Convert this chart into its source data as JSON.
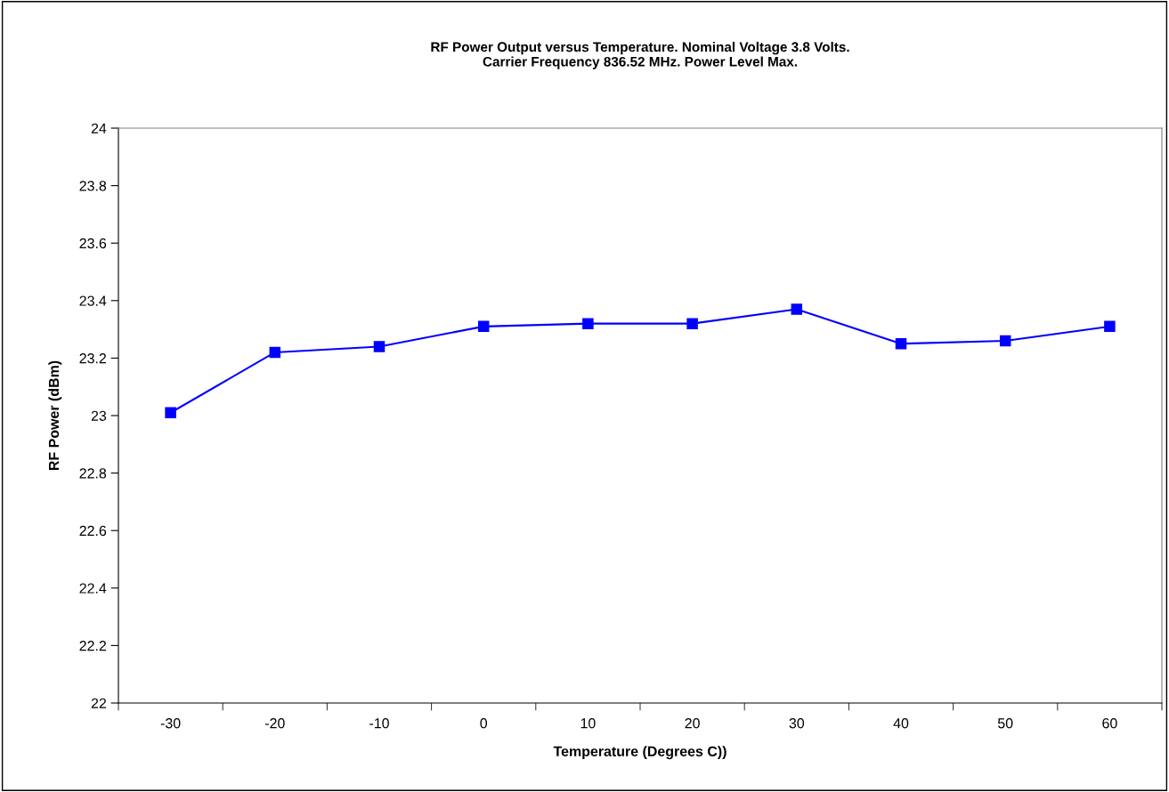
{
  "chart_data": {
    "type": "line",
    "title": "RF Power Output versus Temperature. Nominal Voltage 3.8 Volts.\nCarrier Frequency 836.52 MHz. Power Level Max.",
    "xlabel": "Temperature (Degrees C))",
    "ylabel": "RF Power (dBm)",
    "categories": [
      "-30",
      "-20",
      "-10",
      "0",
      "10",
      "20",
      "30",
      "40",
      "50",
      "60"
    ],
    "series": [
      {
        "color": "#0000ff",
        "values": [
          23.01,
          23.22,
          23.24,
          23.31,
          23.32,
          23.32,
          23.37,
          23.25,
          23.26,
          23.31
        ]
      }
    ],
    "ylim": [
      22,
      24
    ],
    "yticks": [
      22,
      22.2,
      22.4,
      22.6,
      22.8,
      23,
      23.2,
      23.4,
      23.6,
      23.8,
      24
    ],
    "marker": "square",
    "line_style": "solid"
  }
}
